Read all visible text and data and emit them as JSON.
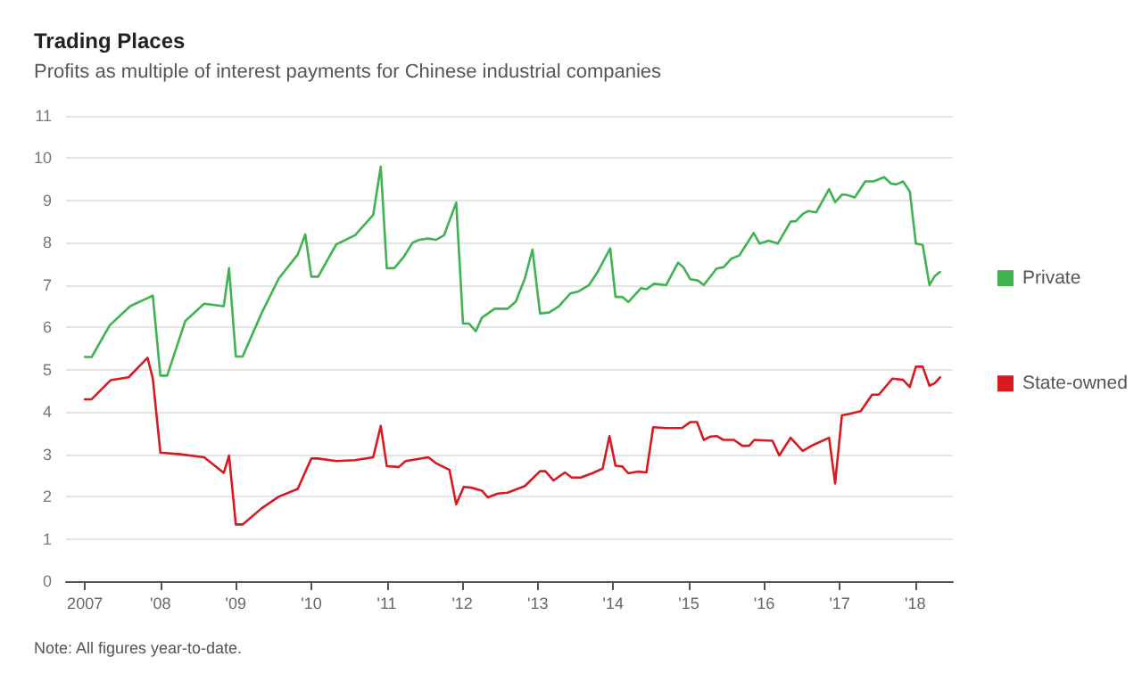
{
  "chart_data": {
    "type": "line",
    "title": "Trading Places",
    "subtitle": "Profits as multiple of interest payments for Chinese industrial companies",
    "annotations": [
      "Note: All figures year-to-date."
    ],
    "series": [
      {
        "name": "Private",
        "color": "#3fb34f",
        "x": [
          2007.0,
          2007.09,
          2007.33,
          2007.6,
          2007.9,
          2008.0,
          2008.09,
          2008.33,
          2008.58,
          2008.84,
          2008.91,
          2009.0,
          2009.09,
          2009.34,
          2009.57,
          2009.82,
          2009.92,
          2010.0,
          2010.09,
          2010.33,
          2010.58,
          2010.82,
          2010.92,
          2011.0,
          2011.1,
          2011.23,
          2011.34,
          2011.43,
          2011.55,
          2011.65,
          2011.76,
          2011.92,
          2012.01,
          2012.09,
          2012.18,
          2012.26,
          2012.43,
          2012.6,
          2012.71,
          2012.83,
          2012.93,
          2013.03,
          2013.15,
          2013.28,
          2013.43,
          2013.54,
          2013.68,
          2013.79,
          2013.96,
          2014.03,
          2014.12,
          2014.2,
          2014.37,
          2014.44,
          2014.54,
          2014.7,
          2014.86,
          2014.93,
          2015.02,
          2015.12,
          2015.2,
          2015.37,
          2015.46,
          2015.57,
          2015.67,
          2015.86,
          2015.94,
          2016.06,
          2016.18,
          2016.35,
          2016.42,
          2016.51,
          2016.58,
          2016.69,
          2016.86,
          2016.94,
          2017.03,
          2017.1,
          2017.2,
          2017.34,
          2017.45,
          2017.59,
          2017.68,
          2017.75,
          2017.84,
          2017.93,
          2018.01,
          2018.1,
          2018.19,
          2018.26,
          2018.33
        ],
        "values": [
          5.3,
          5.3,
          6.05,
          6.5,
          6.75,
          4.86,
          4.86,
          6.15,
          6.56,
          6.5,
          7.4,
          5.31,
          5.31,
          6.33,
          7.16,
          7.72,
          8.2,
          7.2,
          7.2,
          7.96,
          8.18,
          8.66,
          9.8,
          7.4,
          7.4,
          7.68,
          8.0,
          8.07,
          8.1,
          8.07,
          8.18,
          8.95,
          6.09,
          6.09,
          5.91,
          6.23,
          6.44,
          6.44,
          6.61,
          7.16,
          7.84,
          6.33,
          6.35,
          6.5,
          6.8,
          6.85,
          7.0,
          7.3,
          7.87,
          6.72,
          6.72,
          6.6,
          6.93,
          6.9,
          7.03,
          7.0,
          7.53,
          7.42,
          7.14,
          7.11,
          7.0,
          7.39,
          7.42,
          7.63,
          7.7,
          8.23,
          7.98,
          8.05,
          7.98,
          8.5,
          8.51,
          8.68,
          8.75,
          8.72,
          9.27,
          8.96,
          9.14,
          9.13,
          9.07,
          9.45,
          9.45,
          9.55,
          9.4,
          9.38,
          9.45,
          9.21,
          7.98,
          7.95,
          7.0,
          7.21,
          7.31
        ]
      },
      {
        "name": "State-owned",
        "color": "#d71920",
        "x": [
          2007.0,
          2007.09,
          2007.34,
          2007.58,
          2007.83,
          2007.9,
          2008.0,
          2008.26,
          2008.58,
          2008.84,
          2008.91,
          2009.0,
          2009.09,
          2009.34,
          2009.57,
          2009.82,
          2010.0,
          2010.09,
          2010.33,
          2010.58,
          2010.82,
          2010.92,
          2011.0,
          2011.16,
          2011.25,
          2011.55,
          2011.65,
          2011.83,
          2011.92,
          2012.02,
          2012.12,
          2012.26,
          2012.34,
          2012.47,
          2012.6,
          2012.83,
          2013.03,
          2013.1,
          2013.21,
          2013.36,
          2013.45,
          2013.57,
          2013.72,
          2013.86,
          2013.95,
          2014.03,
          2014.12,
          2014.2,
          2014.33,
          2014.44,
          2014.53,
          2014.7,
          2014.91,
          2015.02,
          2015.11,
          2015.2,
          2015.29,
          2015.37,
          2015.46,
          2015.6,
          2015.71,
          2015.8,
          2015.87,
          2016.11,
          2016.2,
          2016.35,
          2016.51,
          2016.65,
          2016.86,
          2016.94,
          2017.03,
          2017.12,
          2017.28,
          2017.43,
          2017.52,
          2017.7,
          2017.84,
          2017.93,
          2018.01,
          2018.1,
          2018.19,
          2018.26,
          2018.33
        ],
        "values": [
          4.3,
          4.3,
          4.75,
          4.82,
          5.28,
          4.79,
          3.04,
          3.0,
          2.93,
          2.56,
          2.97,
          1.34,
          1.34,
          1.72,
          2.0,
          2.18,
          2.9,
          2.9,
          2.84,
          2.86,
          2.93,
          3.67,
          2.72,
          2.7,
          2.84,
          2.93,
          2.79,
          2.63,
          1.82,
          2.23,
          2.21,
          2.14,
          1.98,
          2.07,
          2.09,
          2.25,
          2.6,
          2.6,
          2.38,
          2.57,
          2.45,
          2.45,
          2.55,
          2.66,
          3.43,
          2.73,
          2.71,
          2.55,
          2.59,
          2.57,
          3.64,
          3.62,
          3.62,
          3.76,
          3.76,
          3.34,
          3.42,
          3.43,
          3.34,
          3.34,
          3.2,
          3.2,
          3.34,
          3.32,
          2.97,
          3.39,
          3.08,
          3.22,
          3.39,
          2.31,
          3.92,
          3.95,
          4.02,
          4.41,
          4.41,
          4.79,
          4.76,
          4.59,
          5.07,
          5.07,
          4.62,
          4.68,
          4.82
        ]
      }
    ],
    "xlim": [
      2006.75,
      2018.5
    ],
    "xticks": [
      {
        "value": 2007,
        "label": "2007"
      },
      {
        "value": 2008,
        "label": "'08"
      },
      {
        "value": 2009,
        "label": "'09"
      },
      {
        "value": 2010,
        "label": "'10"
      },
      {
        "value": 2011,
        "label": "'11"
      },
      {
        "value": 2012,
        "label": "'12"
      },
      {
        "value": 2013,
        "label": "'13"
      },
      {
        "value": 2014,
        "label": "'14"
      },
      {
        "value": 2015,
        "label": "'15"
      },
      {
        "value": 2016,
        "label": "'16"
      },
      {
        "value": 2017,
        "label": "'17"
      },
      {
        "value": 2018,
        "label": "'18"
      }
    ],
    "ylim": [
      0,
      11
    ],
    "yticks": [
      0,
      1,
      2,
      3,
      4,
      5,
      6,
      7,
      8,
      9,
      10,
      11
    ],
    "grid": "y",
    "legend": "right",
    "marker": "none",
    "line_style": "solid"
  }
}
